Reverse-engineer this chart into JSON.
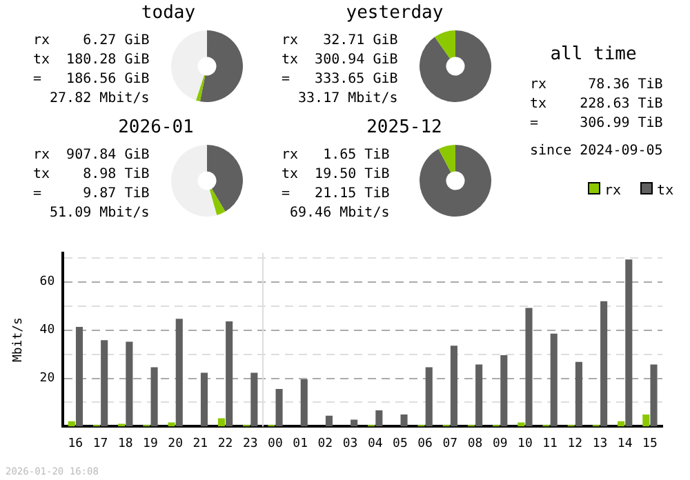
{
  "chart_data": [
    {
      "type": "donut",
      "title": "today",
      "categories": [
        null,
        null,
        null
      ],
      "values": [
        53.1,
        1.9,
        45.0
      ],
      "colors": [
        "#606060",
        "#8cc800",
        "#f0f0f0"
      ],
      "annotations": [
        "rx",
        "6.27 GiB",
        "tx",
        "180.28 GiB",
        "=",
        "186.56 GiB",
        "27.82 Mbit/s"
      ]
    },
    {
      "type": "donut",
      "title": "yesterday",
      "categories": [
        null,
        null
      ],
      "values": [
        90.2,
        9.8
      ],
      "colors": [
        "#606060",
        "#8cc800"
      ],
      "annotations": [
        "rx",
        "32.71 GiB",
        "tx",
        "300.94 GiB",
        "=",
        "333.65 GiB",
        "33.17 Mbit/s"
      ]
    },
    {
      "type": "other",
      "title": "all time",
      "annotations": [
        "rx",
        "78.36 TiB",
        "tx",
        "228.63 TiB",
        "=",
        "306.99 TiB",
        "since 2024-09-05"
      ]
    },
    {
      "type": "donut",
      "title": "2026-01",
      "categories": [
        null,
        null,
        null
      ],
      "values": [
        41.5,
        4.1,
        54.4
      ],
      "colors": [
        "#606060",
        "#8cc800",
        "#f0f0f0"
      ],
      "annotations": [
        "rx",
        "907.84 GiB",
        "tx",
        "8.98 TiB",
        "=",
        "9.87 TiB",
        "51.09 Mbit/s"
      ]
    },
    {
      "type": "donut",
      "title": "2025-12",
      "categories": [
        null,
        null
      ],
      "values": [
        92.2,
        7.8
      ],
      "colors": [
        "#606060",
        "#8cc800"
      ],
      "annotations": [
        "rx",
        "1.65 TiB",
        "tx",
        "19.50 TiB",
        "=",
        "21.15 TiB",
        "69.46 Mbit/s"
      ]
    },
    {
      "type": "bar",
      "ylabel": "Mbit/s",
      "categories": [
        "16",
        "17",
        "18",
        "19",
        "20",
        "21",
        "22",
        "23",
        "00",
        "01",
        "02",
        "03",
        "04",
        "05",
        "06",
        "07",
        "08",
        "09",
        "10",
        "11",
        "12",
        "13",
        "14",
        "15"
      ],
      "series": [
        {
          "name": "rx",
          "color": "#8cc800",
          "values": [
            2.2,
            0.6,
            1.1,
            0.6,
            1.7,
            0,
            3.4,
            0.6,
            0.6,
            0,
            0,
            0,
            0.6,
            0,
            0.6,
            0.6,
            0.6,
            0.6,
            1.7,
            0.6,
            0.6,
            0.6,
            2.2,
            5.0
          ]
        },
        {
          "name": "tx",
          "color": "#606060",
          "values": [
            41.3,
            35.8,
            35.2,
            24.6,
            44.7,
            22.3,
            43.6,
            22.3,
            15.6,
            19.6,
            4.5,
            2.8,
            6.7,
            5.0,
            24.6,
            33.5,
            25.7,
            29.6,
            49.2,
            38.5,
            26.8,
            52.0,
            69.3,
            25.7
          ]
        }
      ],
      "ylim": [
        0,
        72
      ],
      "yticks": [
        {
          "value": 10,
          "label": null
        },
        20,
        {
          "value": 30,
          "label": null
        },
        40,
        {
          "value": 50,
          "label": null
        },
        60,
        {
          "value": 70,
          "label": null
        }
      ],
      "grid": "y",
      "legend": "right",
      "ref_lines": [
        {
          "axis": "x",
          "value": "00",
          "color": "#dddddd"
        }
      ],
      "annotations": [
        "2026-01-20 16:08"
      ]
    }
  ]
}
